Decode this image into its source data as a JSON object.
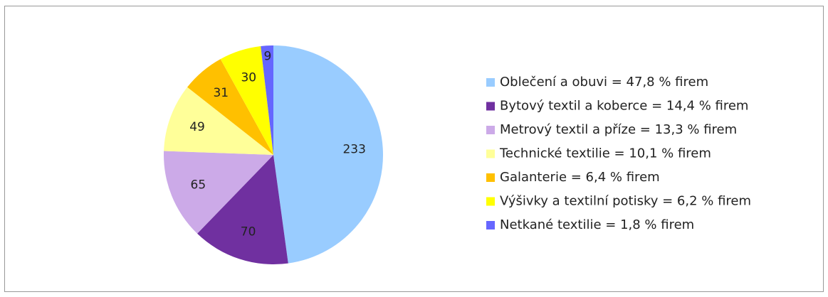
{
  "chart_data": {
    "type": "pie",
    "categories": [
      "Oblečení a obuvi = 47,8 % firem",
      "Bytový textil a koberce = 14,4 % firem",
      "Metrový textil a příze = 13,3 % firem",
      "Technické textilie = 10,1 % firem",
      "Galanterie  = 6,4 % firem",
      "Výšivky a textilní potisky = 6,2 % firem",
      "Netkané textilie = 1,8 % firem"
    ],
    "values": [
      233,
      70,
      65,
      49,
      31,
      30,
      9
    ],
    "colors": [
      "#99ccff",
      "#7030a0",
      "#ccaae8",
      "#ffff99",
      "#ffc000",
      "#ffff00",
      "#6666ff"
    ],
    "legend": "right"
  }
}
